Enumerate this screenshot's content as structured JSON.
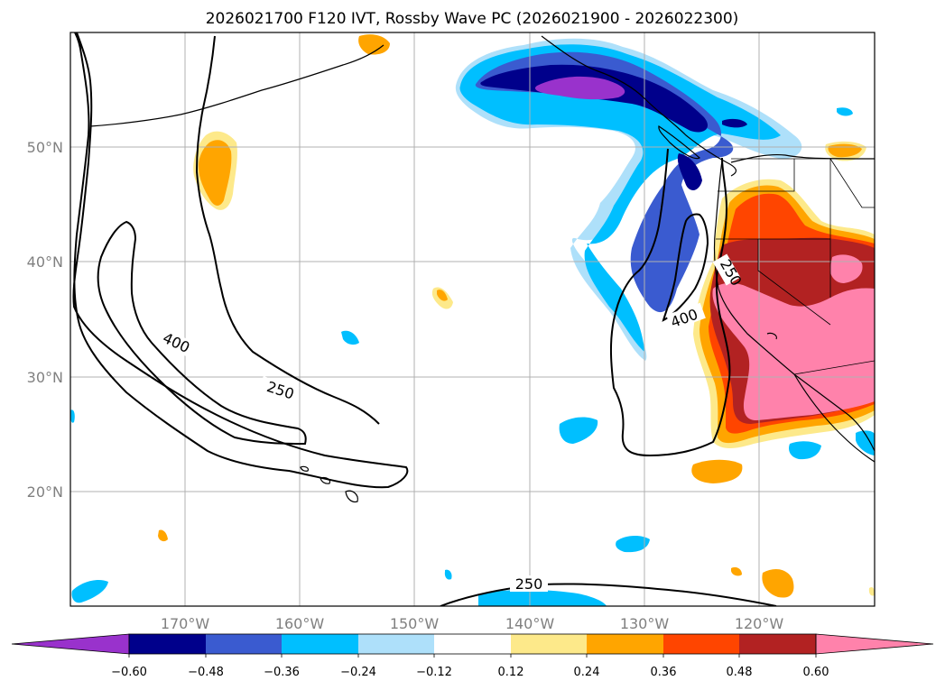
{
  "title": "2026021700 F120 IVT, Rossby Wave PC (2026021900 - 2026022300)",
  "map": {
    "lon_labels": [
      "170°W",
      "160°W",
      "150°W",
      "140°W",
      "130°W",
      "120°W"
    ],
    "lat_labels": [
      "50°N",
      "40°N",
      "30°N",
      "20°N"
    ]
  },
  "contour_labels": {
    "west_400": "400",
    "west_250": "250",
    "east_250": "250",
    "east_400": "400",
    "south_250": "250"
  },
  "colorbar": {
    "ticks": [
      "−0.60",
      "−0.48",
      "−0.36",
      "−0.24",
      "−0.12",
      "0.12",
      "0.24",
      "0.36",
      "0.48",
      "0.60"
    ],
    "colors": {
      "under": "#9932cc",
      "n060": "#00008b",
      "n048": "#3a5bd0",
      "n036": "#00bfff",
      "n024": "#aee0fa",
      "zero": "#ffffff",
      "p012": "#fde98a",
      "p024": "#ffa500",
      "p036": "#ff4500",
      "p048": "#b22222",
      "over": "#ff82ab"
    }
  }
}
